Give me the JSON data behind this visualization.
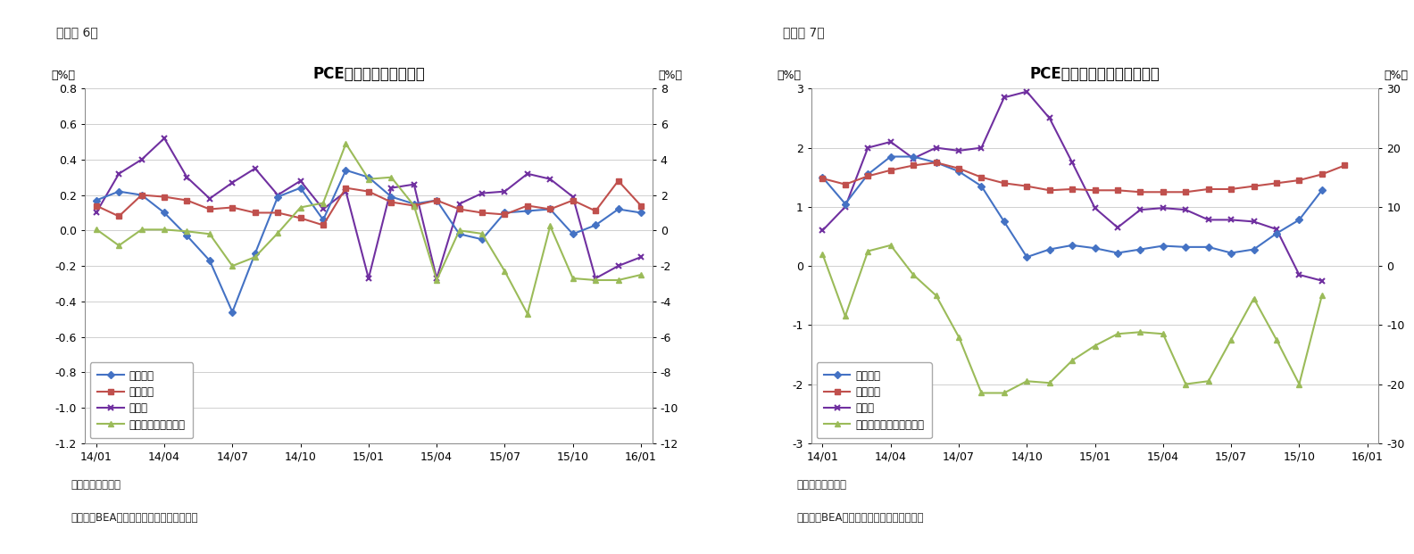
{
  "chart1": {
    "title": "PCE価格指数（前月比）",
    "fig_label": "（図表 6）",
    "n_points": 25,
    "xtick_indices": [
      0,
      3,
      6,
      9,
      12,
      15,
      18,
      21,
      24
    ],
    "xtick_labels": [
      "14/01",
      "14/04",
      "14/07",
      "14/10",
      "15/01",
      "15/04",
      "15/07",
      "15/10",
      "16/01"
    ],
    "left_ylim": [
      -1.2,
      0.8
    ],
    "right_ylim": [
      -12,
      8
    ],
    "left_yticks": [
      -1.2,
      -1.0,
      -0.8,
      -0.6,
      -0.4,
      -0.2,
      0.0,
      0.2,
      0.4,
      0.6,
      0.8
    ],
    "right_yticks": [
      -12,
      -10,
      -8,
      -6,
      -4,
      -2,
      0,
      2,
      4,
      6,
      8
    ],
    "ylabel_left": "（%）",
    "ylabel_right": "（%）",
    "note1": "（注）季節調整済",
    "note2": "（資料）BEAよりニッセイ基礎研究所作成",
    "legend": [
      "総合指数",
      "コア指数",
      "食料品",
      "エネルギー（右軸）"
    ],
    "colors": [
      "#4472c4",
      "#c0504d",
      "#7030a0",
      "#9bbb59"
    ],
    "total": [
      0.17,
      0.22,
      0.2,
      0.1,
      -0.03,
      -0.17,
      -0.46,
      -0.13,
      0.19,
      0.24,
      0.06,
      0.34,
      0.3,
      0.19,
      0.15,
      0.17,
      -0.02,
      -0.05,
      0.1,
      0.11,
      0.12,
      -0.02,
      0.03,
      0.12,
      0.1
    ],
    "core": [
      0.14,
      0.08,
      0.2,
      0.19,
      0.17,
      0.12,
      0.13,
      0.1,
      0.1,
      0.07,
      0.03,
      0.24,
      0.22,
      0.16,
      0.14,
      0.17,
      0.12,
      0.1,
      0.09,
      0.14,
      0.12,
      0.17,
      0.11,
      0.28,
      0.14
    ],
    "food": [
      0.1,
      0.32,
      0.4,
      0.52,
      0.3,
      0.18,
      0.27,
      0.35,
      0.2,
      0.28,
      0.12,
      0.22,
      -0.27,
      0.24,
      0.26,
      -0.27,
      0.15,
      0.21,
      0.22,
      0.32,
      0.29,
      0.19,
      -0.27,
      -0.2,
      -0.15
    ],
    "energy": [
      0.07,
      -0.85,
      0.05,
      0.05,
      -0.05,
      -0.2,
      -2.0,
      -1.5,
      -0.15,
      1.3,
      1.55,
      4.9,
      2.9,
      3.0,
      1.4,
      -2.8,
      0.0,
      -0.18,
      -2.3,
      -4.7,
      0.25,
      -2.7,
      -2.8,
      -2.8,
      -2.5
    ]
  },
  "chart2": {
    "title": "PCE価格指数（前年同月比）",
    "fig_label": "（図表 7）",
    "n_points": 25,
    "xtick_indices": [
      0,
      3,
      6,
      9,
      12,
      15,
      18,
      21,
      24
    ],
    "xtick_labels": [
      "14/01",
      "14/04",
      "14/07",
      "14/10",
      "15/01",
      "15/04",
      "15/07",
      "15/10",
      "16/01"
    ],
    "left_ylim": [
      -3.0,
      3.0
    ],
    "right_ylim": [
      -30,
      30
    ],
    "left_yticks": [
      -3,
      -2,
      -1,
      0,
      1,
      2,
      3
    ],
    "right_yticks": [
      -30,
      -20,
      -10,
      0,
      10,
      20,
      30
    ],
    "ylabel_left": "（%）",
    "ylabel_right": "（%）",
    "note1": "（注）季節調整済",
    "note2": "（資料）BEAよりニッセイ基礎研究所作成",
    "legend": [
      "総合指数",
      "コア指数",
      "食料品",
      "エネルギー関連（右軸）"
    ],
    "colors": [
      "#4472c4",
      "#c0504d",
      "#7030a0",
      "#9bbb59"
    ],
    "total": [
      1.5,
      1.05,
      1.55,
      1.85,
      1.85,
      1.75,
      1.6,
      1.35,
      0.75,
      0.15,
      0.28,
      0.35,
      0.3,
      0.22,
      0.28,
      0.34,
      0.32,
      0.32,
      0.22,
      0.28,
      0.55,
      0.78,
      1.28,
      null,
      null
    ],
    "core": [
      1.48,
      1.38,
      1.52,
      1.62,
      1.7,
      1.75,
      1.65,
      1.5,
      1.4,
      1.35,
      1.28,
      1.3,
      1.28,
      1.28,
      1.25,
      1.25,
      1.25,
      1.3,
      1.3,
      1.35,
      1.4,
      1.45,
      1.55,
      1.7,
      null
    ],
    "food": [
      0.6,
      1.0,
      2.0,
      2.1,
      1.82,
      2.0,
      1.95,
      2.0,
      2.85,
      2.95,
      2.5,
      1.75,
      0.98,
      0.65,
      0.95,
      0.98,
      0.95,
      0.78,
      0.78,
      0.75,
      0.62,
      -0.15,
      -0.25,
      null,
      null
    ],
    "energy": [
      2.0,
      -8.5,
      2.5,
      3.5,
      -1.5,
      -5.0,
      -12.0,
      -21.5,
      -21.5,
      -19.5,
      -19.8,
      -16.0,
      -13.5,
      -11.5,
      -11.2,
      -11.5,
      -20.0,
      -19.5,
      -12.5,
      -5.5,
      -12.5,
      -20.0,
      -5.0,
      null,
      null
    ]
  }
}
